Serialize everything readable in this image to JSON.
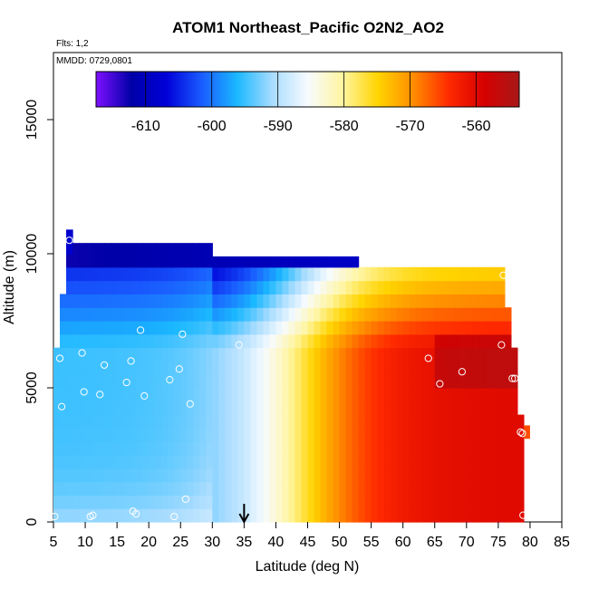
{
  "chart_data": {
    "type": "heatmap",
    "title": "ATOM1 Northeast_Pacific O2N2_AO2",
    "flights_label": "Flts: 1,2",
    "dates_label": "MMDD: 0729,0801",
    "xlabel": "Latitude (deg N)",
    "ylabel": "Altitude (m)",
    "xlim": [
      5,
      85
    ],
    "ylim": [
      0,
      17500
    ],
    "x_ticks": [
      5,
      10,
      15,
      20,
      25,
      30,
      35,
      40,
      45,
      50,
      55,
      60,
      65,
      70,
      75,
      80,
      85
    ],
    "x_tick_labels": [
      "5",
      "10",
      "15",
      "20",
      "25",
      "30",
      "35",
      "40",
      "45",
      "50",
      "55",
      "60",
      "65",
      "70",
      "75",
      "80",
      "85"
    ],
    "y_ticks": [
      0,
      5000,
      10000,
      15000
    ],
    "y_tick_labels": [
      "0",
      "5000",
      "10000",
      "15000"
    ],
    "colorbar": {
      "min": -617.5,
      "max": -553.5,
      "ticks": [
        -610,
        -600,
        -590,
        -580,
        -570,
        -560
      ],
      "tick_labels": [
        "-610",
        "-600",
        "-590",
        "-580",
        "-570",
        "-560"
      ],
      "colors": [
        "#7f10ff",
        "#0000a8",
        "#0000d8",
        "#1a5cff",
        "#1ab8ff",
        "#a8dcff",
        "#f7fbff",
        "#fff5a0",
        "#ffd400",
        "#ff8c00",
        "#ff2a00",
        "#d60000",
        "#a81818"
      ]
    },
    "arrow_latitude": 35,
    "sample_points": [
      [
        5.2,
        200
      ],
      [
        6.0,
        6100
      ],
      [
        6.3,
        4300
      ],
      [
        7.5,
        10500
      ],
      [
        9.5,
        6300
      ],
      [
        9.8,
        4850
      ],
      [
        10.8,
        200
      ],
      [
        11.2,
        250
      ],
      [
        12.3,
        4750
      ],
      [
        13.0,
        5850
      ],
      [
        16.5,
        5200
      ],
      [
        17.2,
        6000
      ],
      [
        17.5,
        400
      ],
      [
        18.0,
        300
      ],
      [
        18.7,
        7150
      ],
      [
        19.3,
        4700
      ],
      [
        23.3,
        5300
      ],
      [
        24.0,
        200
      ],
      [
        24.8,
        5700
      ],
      [
        25.3,
        7000
      ],
      [
        25.8,
        850
      ],
      [
        26.5,
        4400
      ],
      [
        34.2,
        6600
      ],
      [
        64.0,
        6100
      ],
      [
        65.8,
        5150
      ],
      [
        69.3,
        5600
      ],
      [
        75.5,
        6600
      ],
      [
        75.8,
        9200
      ],
      [
        77.2,
        5350
      ],
      [
        77.6,
        5350
      ],
      [
        78.5,
        3350
      ],
      [
        78.8,
        3300
      ],
      [
        78.9,
        250
      ]
    ]
  }
}
